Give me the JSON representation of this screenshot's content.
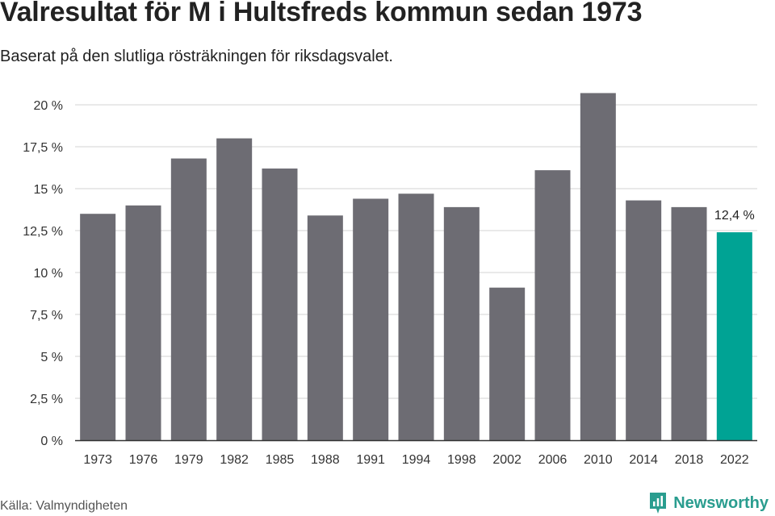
{
  "chart_data": {
    "type": "bar",
    "title": "Valresultat för M i Hultsfreds kommun sedan 1973",
    "subtitle": "Baserat på den slutliga rösträkningen för riksdagsvalet.",
    "categories": [
      "1973",
      "1976",
      "1979",
      "1982",
      "1985",
      "1988",
      "1991",
      "1994",
      "1998",
      "2002",
      "2006",
      "2010",
      "2014",
      "2018",
      "2022"
    ],
    "values": [
      13.5,
      14.0,
      16.8,
      18.0,
      16.2,
      13.4,
      14.4,
      14.7,
      13.9,
      9.1,
      16.1,
      20.7,
      14.3,
      13.9,
      12.4
    ],
    "ylim": [
      0,
      20
    ],
    "yticks": [
      0,
      2.5,
      5,
      7.5,
      10,
      12.5,
      15,
      17.5,
      20
    ],
    "ytick_labels": [
      "0 %",
      "2,5 %",
      "5 %",
      "7,5 %",
      "10 %",
      "12,5 %",
      "15 %",
      "17,5 %",
      "20 %"
    ],
    "highlight_index": 14,
    "highlight_label": "12,4 %",
    "bar_color": "#6d6c73",
    "highlight_color": "#00a394",
    "grid": true,
    "xlabel": "",
    "ylabel": ""
  },
  "footer": {
    "source": "Källa: Valmyndigheten",
    "brand": "Newsworthy",
    "brand_icon": "newsworthy-logo-icon",
    "brand_color": "#2a9d8f"
  }
}
